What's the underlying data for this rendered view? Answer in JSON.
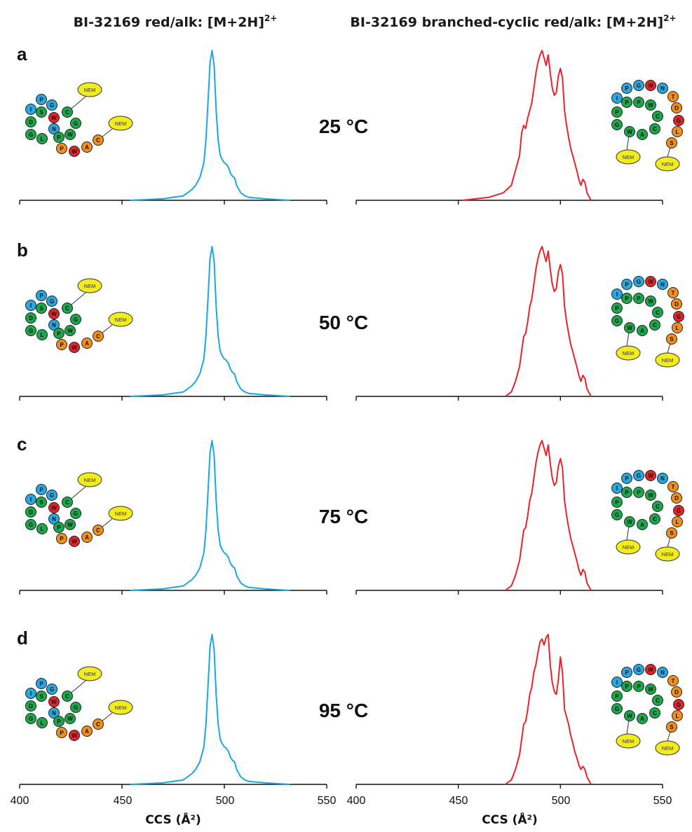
{
  "headings": {
    "left_main": "BI-32169 red/alk: [M+2H]",
    "left_sup": "2+",
    "right_main": "BI-32169 branched-cyclic red/alk: [M+2H]",
    "right_sup": "2+"
  },
  "axis": {
    "xlabel": "CCS (Å²)",
    "ticks": [
      "400",
      "450",
      "500",
      "550"
    ]
  },
  "panels": [
    {
      "letter": "a",
      "temp": "25 °C"
    },
    {
      "letter": "b",
      "temp": "50 °C"
    },
    {
      "letter": "c",
      "temp": "75 °C"
    },
    {
      "letter": "d",
      "temp": "95 °C"
    }
  ],
  "structure_labels": {
    "nem": "NEM",
    "left_residues": [
      "I",
      "P",
      "G",
      "S",
      "W",
      "C",
      "D",
      "N",
      "G",
      "G",
      "L",
      "P",
      "W",
      "P",
      "W",
      "A",
      "C"
    ],
    "right_residues": [
      "I",
      "P",
      "G",
      "W",
      "N",
      "T",
      "D",
      "G",
      "L",
      "S",
      "P",
      "P",
      "W",
      "P",
      "C",
      "G",
      "W",
      "A",
      "C"
    ]
  },
  "colors": {
    "left_trace": "#1ba7e1",
    "right_trace": "#e8232a",
    "blue_residue": "#29a8e0",
    "green_residue": "#1aa84b",
    "red_residue": "#e0252a",
    "orange_residue": "#f28e1c",
    "nem": "#f2ec1c"
  },
  "chart_data": [
    {
      "type": "line",
      "panel": "a",
      "temp": "25 °C",
      "series": [
        {
          "color": "#1ba7e1",
          "x": [
            454,
            470,
            480,
            484,
            486,
            488,
            490,
            491,
            492,
            493,
            494,
            495,
            496,
            497,
            498,
            499,
            500,
            501,
            502,
            503,
            504,
            505,
            506,
            508,
            510,
            512,
            520,
            532
          ],
          "y": [
            0,
            0.01,
            0.03,
            0.07,
            0.1,
            0.15,
            0.25,
            0.4,
            0.65,
            0.92,
            1.0,
            0.9,
            0.6,
            0.4,
            0.3,
            0.27,
            0.25,
            0.24,
            0.22,
            0.18,
            0.16,
            0.15,
            0.1,
            0.05,
            0.03,
            0.02,
            0.01,
            0
          ]
        }
      ]
    },
    {
      "type": "line",
      "panel": "a",
      "temp": "25 °C",
      "series": [
        {
          "color": "#e8232a",
          "x": [
            452,
            465,
            472,
            476,
            478,
            480,
            481,
            482,
            483,
            484,
            485,
            486,
            487,
            488,
            489,
            490,
            491,
            492,
            493,
            494,
            495,
            496,
            497,
            498,
            499,
            500,
            501,
            502,
            503,
            504,
            505,
            506,
            507,
            508,
            509,
            510,
            511,
            512,
            513,
            515
          ],
          "y": [
            0,
            0.02,
            0.05,
            0.1,
            0.2,
            0.3,
            0.45,
            0.5,
            0.48,
            0.55,
            0.6,
            0.65,
            0.75,
            0.85,
            0.92,
            0.97,
            1.0,
            0.95,
            0.9,
            0.97,
            0.85,
            0.75,
            0.7,
            0.72,
            0.83,
            0.88,
            0.82,
            0.6,
            0.5,
            0.42,
            0.35,
            0.3,
            0.25,
            0.2,
            0.14,
            0.1,
            0.14,
            0.12,
            0.05,
            0
          ]
        }
      ]
    },
    {
      "type": "line",
      "panel": "b",
      "temp": "50 °C",
      "series": [
        {
          "color": "#1ba7e1",
          "x": [
            454,
            470,
            480,
            484,
            486,
            488,
            490,
            491,
            492,
            493,
            494,
            495,
            496,
            497,
            498,
            499,
            500,
            501,
            502,
            503,
            504,
            505,
            506,
            508,
            510,
            512,
            520,
            532
          ],
          "y": [
            0,
            0.01,
            0.03,
            0.07,
            0.1,
            0.15,
            0.25,
            0.4,
            0.65,
            0.92,
            1.0,
            0.9,
            0.6,
            0.4,
            0.3,
            0.27,
            0.25,
            0.24,
            0.22,
            0.18,
            0.16,
            0.15,
            0.1,
            0.05,
            0.03,
            0.02,
            0.01,
            0
          ]
        }
      ]
    },
    {
      "type": "line",
      "panel": "b",
      "temp": "50 °C",
      "series": [
        {
          "color": "#e8232a",
          "x": [
            473,
            476,
            478,
            480,
            481,
            482,
            483,
            484,
            485,
            486,
            487,
            488,
            489,
            490,
            491,
            492,
            493,
            494,
            495,
            496,
            497,
            498,
            499,
            500,
            501,
            502,
            503,
            504,
            505,
            506,
            507,
            508,
            509,
            510,
            511,
            512,
            513,
            515
          ],
          "y": [
            0,
            0.03,
            0.1,
            0.2,
            0.3,
            0.4,
            0.42,
            0.5,
            0.6,
            0.65,
            0.75,
            0.85,
            0.92,
            0.97,
            1.0,
            0.95,
            0.9,
            0.97,
            0.85,
            0.75,
            0.7,
            0.72,
            0.83,
            0.88,
            0.82,
            0.6,
            0.5,
            0.42,
            0.35,
            0.3,
            0.25,
            0.2,
            0.14,
            0.1,
            0.14,
            0.12,
            0.05,
            0
          ]
        }
      ]
    },
    {
      "type": "line",
      "panel": "c",
      "temp": "75 °C",
      "series": [
        {
          "color": "#1ba7e1",
          "x": [
            454,
            470,
            480,
            484,
            486,
            488,
            490,
            491,
            492,
            493,
            494,
            495,
            496,
            497,
            498,
            499,
            500,
            501,
            502,
            503,
            504,
            505,
            506,
            508,
            510,
            512,
            520,
            532
          ],
          "y": [
            0,
            0.01,
            0.03,
            0.07,
            0.1,
            0.15,
            0.25,
            0.4,
            0.65,
            0.92,
            1.0,
            0.9,
            0.6,
            0.4,
            0.3,
            0.27,
            0.25,
            0.24,
            0.22,
            0.18,
            0.16,
            0.15,
            0.1,
            0.05,
            0.03,
            0.02,
            0.01,
            0
          ]
        }
      ]
    },
    {
      "type": "line",
      "panel": "c",
      "temp": "75 °C",
      "series": [
        {
          "color": "#e8232a",
          "x": [
            473,
            476,
            478,
            480,
            481,
            482,
            483,
            484,
            485,
            486,
            487,
            488,
            489,
            490,
            491,
            492,
            493,
            494,
            495,
            496,
            497,
            498,
            499,
            500,
            501,
            502,
            503,
            504,
            505,
            506,
            507,
            508,
            509,
            510,
            511,
            512,
            513,
            515
          ],
          "y": [
            0,
            0.03,
            0.1,
            0.2,
            0.3,
            0.4,
            0.42,
            0.5,
            0.6,
            0.65,
            0.75,
            0.85,
            0.92,
            0.97,
            1.0,
            0.95,
            0.9,
            0.97,
            0.85,
            0.75,
            0.7,
            0.72,
            0.83,
            0.88,
            0.82,
            0.6,
            0.5,
            0.42,
            0.35,
            0.3,
            0.25,
            0.2,
            0.14,
            0.1,
            0.14,
            0.12,
            0.05,
            0
          ]
        }
      ]
    },
    {
      "type": "line",
      "panel": "d",
      "temp": "95 °C",
      "series": [
        {
          "color": "#1ba7e1",
          "x": [
            454,
            470,
            480,
            484,
            486,
            488,
            490,
            491,
            492,
            493,
            494,
            495,
            496,
            497,
            498,
            499,
            500,
            501,
            502,
            503,
            504,
            505,
            506,
            508,
            510,
            512,
            520,
            532
          ],
          "y": [
            0,
            0.01,
            0.03,
            0.07,
            0.1,
            0.15,
            0.25,
            0.4,
            0.65,
            0.92,
            1.0,
            0.9,
            0.6,
            0.4,
            0.3,
            0.27,
            0.25,
            0.24,
            0.22,
            0.18,
            0.16,
            0.15,
            0.1,
            0.05,
            0.03,
            0.02,
            0.01,
            0
          ]
        }
      ]
    },
    {
      "type": "line",
      "panel": "d",
      "temp": "95 °C",
      "series": [
        {
          "color": "#e8232a",
          "x": [
            473,
            476,
            478,
            480,
            481,
            482,
            483,
            484,
            485,
            486,
            487,
            488,
            489,
            490,
            491,
            492,
            493,
            494,
            495,
            496,
            497,
            498,
            499,
            500,
            501,
            502,
            503,
            504,
            505,
            506,
            507,
            508,
            509,
            510,
            511,
            512,
            513,
            515
          ],
          "y": [
            0,
            0.03,
            0.1,
            0.2,
            0.3,
            0.4,
            0.42,
            0.5,
            0.6,
            0.65,
            0.75,
            0.8,
            0.88,
            0.95,
            0.97,
            0.93,
            0.98,
            1.0,
            0.8,
            0.68,
            0.62,
            0.6,
            0.7,
            0.85,
            0.75,
            0.5,
            0.45,
            0.4,
            0.33,
            0.28,
            0.22,
            0.18,
            0.13,
            0.1,
            0.12,
            0.1,
            0.05,
            0
          ]
        }
      ]
    }
  ]
}
